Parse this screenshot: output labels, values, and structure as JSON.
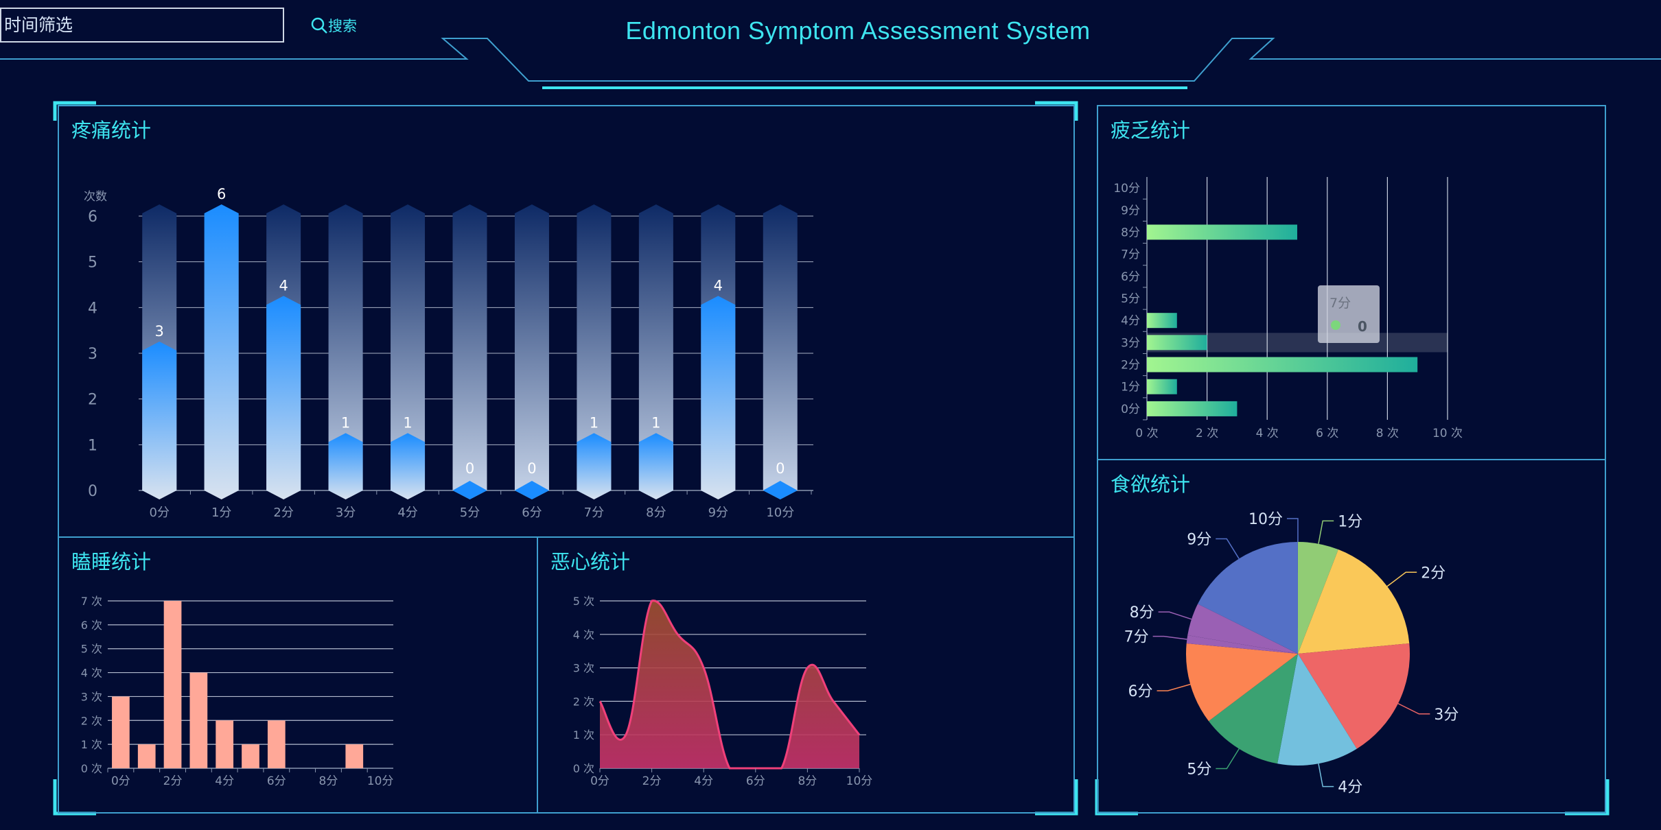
{
  "header": {
    "title": "Edmonton Symptom Assessment System",
    "time_filter_placeholder": "时间筛选",
    "search_label": "搜索"
  },
  "panels": {
    "pain": {
      "title": "疼痛统计"
    },
    "fatigue": {
      "title": "疲乏统计"
    },
    "sleep": {
      "title": "瞌睡统计"
    },
    "nausea": {
      "title": "恶心统计"
    },
    "appetite": {
      "title": "食欲统计"
    }
  },
  "colors": {
    "background": "#020c33",
    "accent": "#3ee5f0",
    "border": "#3fa0cf",
    "pain_bar": "#1a8cff",
    "sleep_bar": "#ffa898",
    "nausea_line": "#f0407a"
  },
  "chart_data": [
    {
      "id": "pain",
      "type": "bar",
      "ylabel": "次数",
      "categories": [
        "0分",
        "1分",
        "2分",
        "3分",
        "4分",
        "5分",
        "6分",
        "7分",
        "8分",
        "9分",
        "10分"
      ],
      "values": [
        3,
        6,
        4,
        1,
        1,
        0,
        0,
        1,
        1,
        4,
        0
      ],
      "ylim": [
        0,
        6
      ],
      "yticks": [
        0,
        1,
        2,
        3,
        4,
        5,
        6
      ],
      "data_labels": true,
      "grid": true
    },
    {
      "id": "fatigue",
      "type": "bar",
      "orientation": "horizontal",
      "categories": [
        "0分",
        "1分",
        "2分",
        "3分",
        "4分",
        "5分",
        "6分",
        "7分",
        "8分",
        "9分",
        "10分"
      ],
      "values": [
        3,
        1,
        9,
        2,
        1,
        0,
        0,
        0,
        5,
        0,
        0
      ],
      "xlim": [
        0,
        10
      ],
      "xticks": [
        "0 次",
        "2 次",
        "4 次",
        "6 次",
        "8 次",
        "10 次"
      ],
      "tooltip": {
        "category": "7分",
        "value": "0"
      },
      "grid": true
    },
    {
      "id": "sleep",
      "type": "bar",
      "categories": [
        "0分",
        "1分",
        "2分",
        "3分",
        "4分",
        "5分",
        "6分",
        "7分",
        "8分",
        "9分",
        "10分"
      ],
      "xtick_labels": [
        "0分",
        "2分",
        "4分",
        "6分",
        "8分",
        "10分"
      ],
      "values": [
        3,
        1,
        7,
        4,
        2,
        1,
        2,
        0,
        0,
        1,
        0
      ],
      "ylim": [
        0,
        7
      ],
      "yticks": [
        "0 次",
        "1 次",
        "2 次",
        "3 次",
        "4 次",
        "5 次",
        "6 次",
        "7 次"
      ],
      "grid": true
    },
    {
      "id": "nausea",
      "type": "area",
      "x": [
        0,
        1,
        2,
        3,
        4,
        5,
        6,
        7,
        8,
        9,
        10
      ],
      "xtick_labels": [
        "0分",
        "2分",
        "4分",
        "6分",
        "8分",
        "10分"
      ],
      "values": [
        2,
        1,
        5,
        4,
        3,
        0,
        0,
        0,
        3,
        2,
        1
      ],
      "ylim": [
        0,
        5
      ],
      "yticks": [
        "0 次",
        "1 次",
        "2 次",
        "3 次",
        "4 次",
        "5 次"
      ],
      "grid": true
    },
    {
      "id": "appetite",
      "type": "pie",
      "slices": [
        {
          "label": "1分",
          "value": 1,
          "color": "#91cc75"
        },
        {
          "label": "2分",
          "value": 3,
          "color": "#fac858"
        },
        {
          "label": "3分",
          "value": 3,
          "color": "#ee6666"
        },
        {
          "label": "4分",
          "value": 2,
          "color": "#73c0de"
        },
        {
          "label": "5分",
          "value": 2,
          "color": "#3ba272"
        },
        {
          "label": "6分",
          "value": 2,
          "color": "#fc8452"
        },
        {
          "label": "7分",
          "value": 0.2,
          "color": "#9a60b4"
        },
        {
          "label": "8分",
          "value": 0.8,
          "color": "#9a60b4"
        },
        {
          "label": "9分",
          "value": 3,
          "color": "#5470c6"
        },
        {
          "label": "10分",
          "value": 0.001,
          "color": "#5470c6"
        }
      ]
    }
  ]
}
